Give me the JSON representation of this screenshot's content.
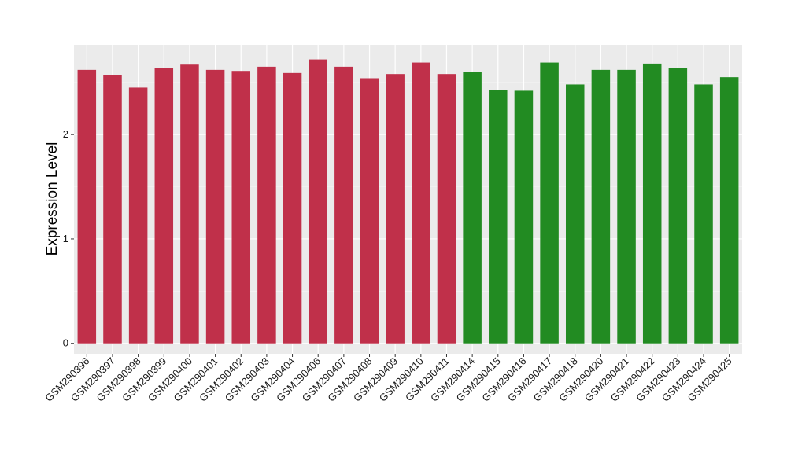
{
  "chart_data": {
    "type": "bar",
    "title": "",
    "xlabel": "",
    "ylabel": "Expression Level",
    "ylim": [
      -0.1,
      2.86
    ],
    "yticks": [
      0,
      1,
      2
    ],
    "grid": true,
    "legend": "none",
    "categories": [
      "GSM290396",
      "GSM290397",
      "GSM290398",
      "GSM290399",
      "GSM290400",
      "GSM290401",
      "GSM290402",
      "GSM290403",
      "GSM290404",
      "GSM290406",
      "GSM290407",
      "GSM290408",
      "GSM290409",
      "GSM290410",
      "GSM290411",
      "GSM290414",
      "GSM290415",
      "GSM290416",
      "GSM290417",
      "GSM290418",
      "GSM290420",
      "GSM290421",
      "GSM290422",
      "GSM290423",
      "GSM290424",
      "GSM290425"
    ],
    "values": [
      2.62,
      2.57,
      2.45,
      2.64,
      2.67,
      2.62,
      2.61,
      2.65,
      2.59,
      2.72,
      2.65,
      2.54,
      2.58,
      2.69,
      2.58,
      2.6,
      2.43,
      2.42,
      2.69,
      2.48,
      2.62,
      2.62,
      2.68,
      2.64,
      2.48,
      2.55
    ],
    "group_colors": [
      "#c0304a",
      "#228b22"
    ],
    "group_of_bar": [
      0,
      0,
      0,
      0,
      0,
      0,
      0,
      0,
      0,
      0,
      0,
      0,
      0,
      0,
      0,
      1,
      1,
      1,
      1,
      1,
      1,
      1,
      1,
      1,
      1,
      1
    ]
  }
}
